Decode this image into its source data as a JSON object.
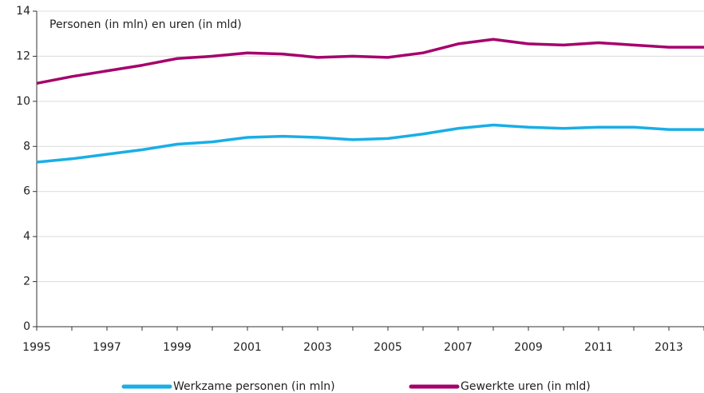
{
  "chart_data": {
    "type": "line",
    "y_label": "Personen (in mln) en uren (in mld)",
    "categories": [
      "1995",
      null,
      "1997",
      null,
      "1999",
      null,
      "2001",
      null,
      "2003",
      null,
      "2005",
      null,
      "2007",
      null,
      "2009",
      null,
      "2011",
      null,
      "2013",
      null
    ],
    "series": [
      {
        "name": "Werkzame personen (in mln)",
        "color": "#19aee6",
        "values": [
          7.3,
          7.45,
          7.65,
          7.85,
          8.1,
          8.2,
          8.4,
          8.45,
          8.4,
          8.3,
          8.35,
          8.55,
          8.8,
          8.95,
          8.85,
          8.8,
          8.85,
          8.85,
          8.75,
          8.75
        ]
      },
      {
        "name": "Gewerkte uren (in mld)",
        "color": "#a5006b",
        "values": [
          10.8,
          11.1,
          11.35,
          11.6,
          11.9,
          12.0,
          12.15,
          12.1,
          11.95,
          12.0,
          11.95,
          12.15,
          12.55,
          12.75,
          12.55,
          12.5,
          12.6,
          12.5,
          12.4,
          12.4
        ]
      }
    ],
    "ylim": [
      0,
      14
    ],
    "yticks": [
      0,
      2,
      4,
      6,
      8,
      10,
      12,
      14
    ],
    "grid": true,
    "legend": "bottom"
  }
}
